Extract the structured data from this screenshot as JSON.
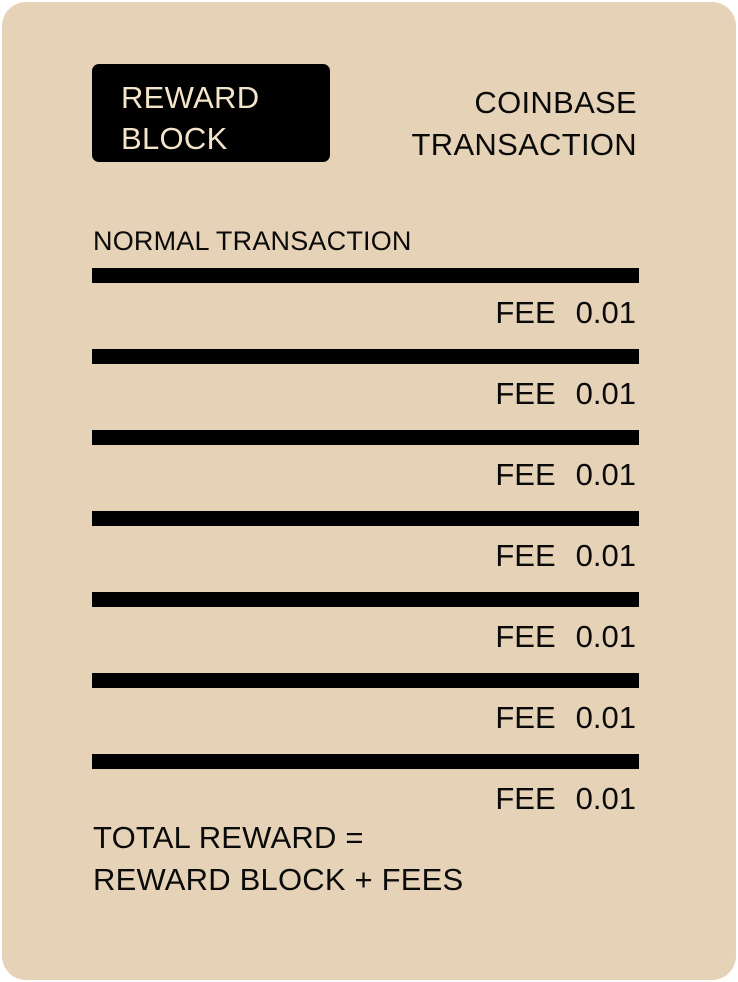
{
  "reward_block": {
    "line1": "REWARD",
    "line2": "BLOCK"
  },
  "coinbase": {
    "line1": "COINBASE",
    "line2": "TRANSACTION"
  },
  "normal_transaction_label": "NORMAL TRANSACTION",
  "transactions": [
    {
      "fee_label": "FEE",
      "fee_value": "0.01"
    },
    {
      "fee_label": "FEE",
      "fee_value": "0.01"
    },
    {
      "fee_label": "FEE",
      "fee_value": "0.01"
    },
    {
      "fee_label": "FEE",
      "fee_value": "0.01"
    },
    {
      "fee_label": "FEE",
      "fee_value": "0.01"
    },
    {
      "fee_label": "FEE",
      "fee_value": "0.01"
    },
    {
      "fee_label": "FEE",
      "fee_value": "0.01"
    }
  ],
  "total": {
    "line1": "TOTAL REWARD =",
    "line2": "REWARD BLOCK + FEES"
  },
  "colors": {
    "background": "#e6d3b7",
    "ink": "#000000",
    "reward_text": "#f3e4cb"
  }
}
